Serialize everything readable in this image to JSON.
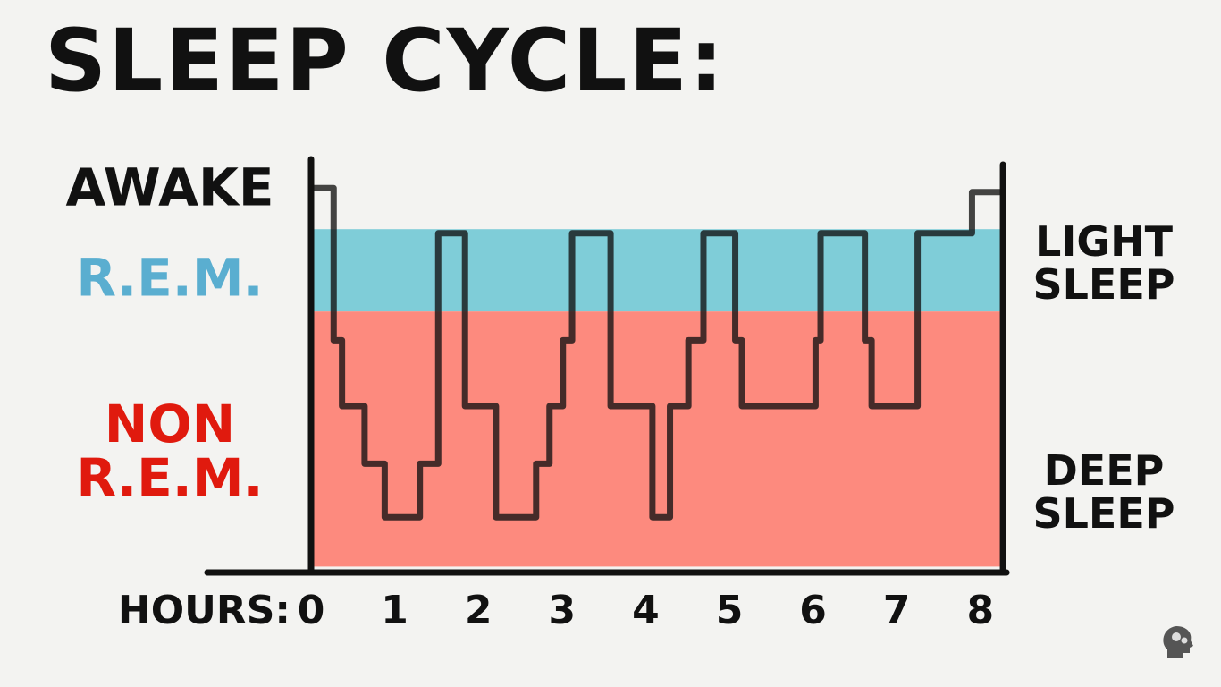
{
  "chart_data": {
    "type": "line",
    "title": "SLEEP CYCLE:",
    "x_label": "HOURS:",
    "xlim": [
      0,
      8.27
    ],
    "xticks": [
      0,
      1,
      2,
      3,
      4,
      5,
      6,
      7,
      8
    ],
    "ylim": [
      0,
      100
    ],
    "yticks": [
      {
        "value": 93,
        "label": "AWAKE"
      },
      {
        "value": 71,
        "label": "R.E.M."
      },
      {
        "value": 29,
        "label": "NON\nR.E.M."
      }
    ],
    "ytick_colors": [
      "#111111",
      "#5aaed0",
      "#e01a0e"
    ],
    "bands": [
      {
        "range": [
          63,
          83
        ],
        "color": "#7fcdd8"
      },
      {
        "range": [
          1,
          63
        ],
        "color": "#fd8a7e"
      }
    ],
    "annotations": [
      "LIGHT\nSLEEP",
      "DEEP\nSLEEP"
    ],
    "series": [
      {
        "color": "#111111",
        "x": [
          0,
          0.27,
          0.27,
          0.37,
          0.37,
          0.64,
          0.64,
          0.88,
          0.88,
          1.3,
          1.3,
          1.52,
          1.52,
          1.84,
          1.84,
          2.21,
          2.21,
          2.69,
          2.69,
          2.85,
          2.85,
          3.01,
          3.01,
          3.12,
          3.12,
          3.58,
          3.58,
          4.08,
          4.08,
          4.29,
          4.29,
          4.51,
          4.51,
          4.69,
          4.69,
          5.07,
          5.07,
          5.15,
          5.15,
          6.03,
          6.03,
          6.09,
          6.09,
          6.62,
          6.62,
          6.7,
          6.7,
          7.25,
          7.25,
          7.9,
          7.9,
          8.25
        ],
        "values": [
          93,
          93,
          56,
          56,
          40,
          40,
          26,
          26,
          13,
          13,
          26,
          26,
          82,
          82,
          40,
          40,
          13,
          13,
          26,
          26,
          40,
          40,
          56,
          56,
          82,
          82,
          40,
          40,
          13,
          13,
          40,
          40,
          56,
          56,
          82,
          82,
          56,
          56,
          40,
          40,
          56,
          56,
          82,
          82,
          56,
          56,
          40,
          40,
          82,
          82,
          92,
          92
        ]
      }
    ]
  }
}
